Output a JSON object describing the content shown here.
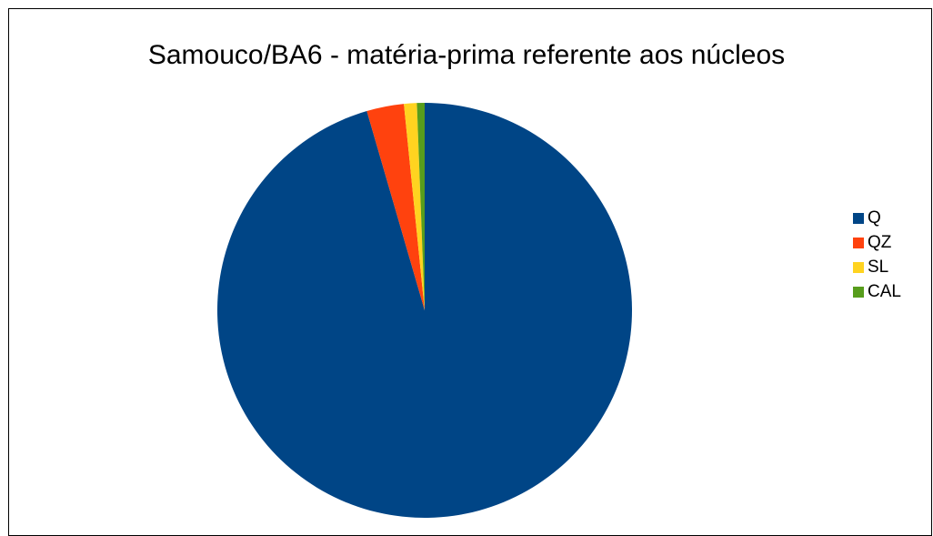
{
  "chart_data": {
    "type": "pie",
    "title": "Samouco/BA6 - matéria-prima referente aos núcleos",
    "categories": [
      "Q",
      "QZ",
      "SL",
      "CAL"
    ],
    "values": [
      95.5,
      2.9,
      1.0,
      0.6
    ],
    "colors": [
      "#004586",
      "#ff420e",
      "#ffd320",
      "#579d1c"
    ],
    "legend_position": "right"
  }
}
